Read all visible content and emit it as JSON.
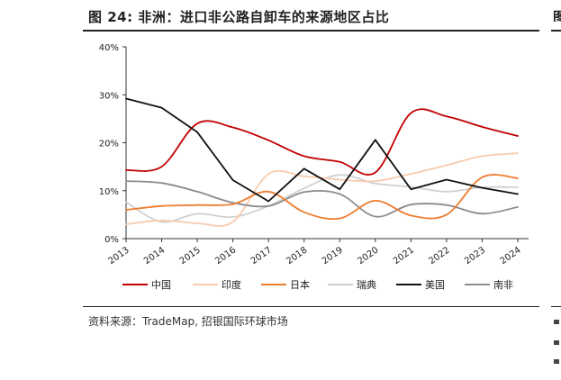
{
  "page": {
    "title": "图 24: 非洲：进口非公路自卸车的来源地区占比",
    "source": "资料来源：TradeMap, 招银国际环球市场",
    "edge_glyph": "图"
  },
  "chart_data": {
    "type": "line",
    "title": "图 24: 非洲：进口非公路自卸车的来源地区占比",
    "xlabel": "",
    "ylabel": "",
    "x": [
      "2013",
      "2014",
      "2015",
      "2016",
      "2017",
      "2018",
      "2019",
      "2020",
      "2021",
      "2022",
      "2023",
      "2024"
    ],
    "y_ticks": [
      "0%",
      "10%",
      "20%",
      "30%",
      "40%"
    ],
    "ylim": [
      0,
      40
    ],
    "grid": false,
    "legend_position": "bottom",
    "series": [
      {
        "name": "中国",
        "color": "#c00000",
        "values": [
          14.3,
          15.0,
          24.0,
          23.2,
          20.5,
          17.2,
          16.0,
          13.8,
          26.2,
          25.5,
          23.3,
          21.4
        ]
      },
      {
        "name": "印度",
        "color": "#f8cbad",
        "values": [
          3.0,
          3.8,
          3.2,
          3.5,
          13.5,
          13.0,
          12.3,
          12.0,
          13.5,
          15.3,
          17.2,
          17.8
        ]
      },
      {
        "name": "日本",
        "color": "#ed7d31",
        "values": [
          6.0,
          6.8,
          7.0,
          7.2,
          9.8,
          5.5,
          4.2,
          7.9,
          4.8,
          5.0,
          12.8,
          12.6
        ]
      },
      {
        "name": "瑞典",
        "color": "#d0d0d0",
        "values": [
          7.6,
          3.5,
          5.2,
          4.5,
          6.8,
          10.5,
          13.3,
          11.5,
          10.8,
          9.8,
          10.7,
          10.7
        ]
      },
      {
        "name": "美国",
        "color": "#111111",
        "values": [
          29.2,
          27.3,
          22.2,
          12.2,
          7.8,
          14.6,
          10.3,
          20.6,
          10.3,
          12.3,
          10.6,
          9.3
        ]
      },
      {
        "name": "南非",
        "color": "#8c8c8c",
        "values": [
          12.0,
          11.6,
          9.8,
          7.5,
          6.8,
          9.7,
          9.3,
          4.6,
          7.1,
          7.0,
          5.2,
          6.6
        ]
      }
    ]
  }
}
